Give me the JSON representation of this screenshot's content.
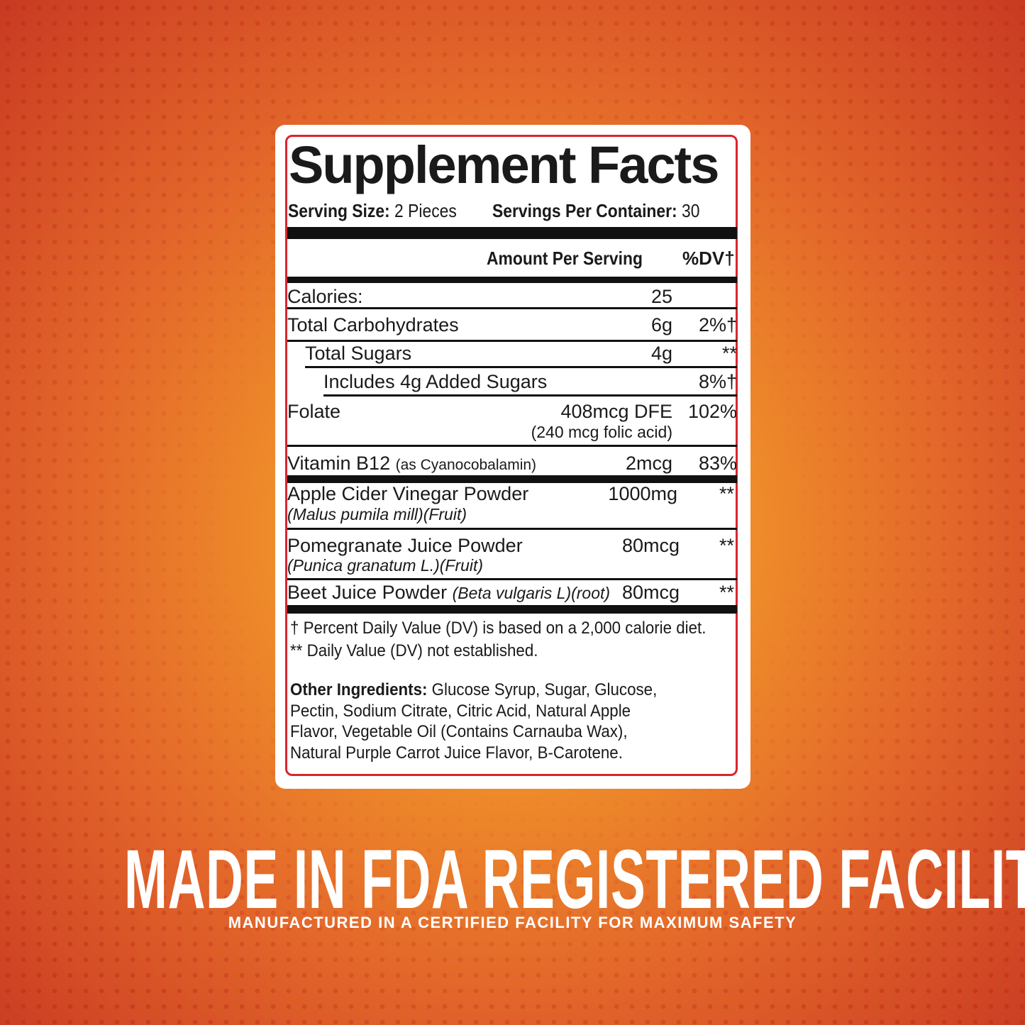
{
  "label": {
    "title": "Supplement Facts",
    "serving_size_label": "Serving Size:",
    "serving_size": "2 Pieces",
    "servings_label": "Servings Per Container:",
    "servings": "30",
    "amount_header": "Amount Per Serving",
    "dv_header": "%DV†",
    "rows": [
      {
        "name": "Calories:",
        "amount": "25",
        "dv": ""
      },
      {
        "name": "Total Carbohydrates",
        "amount": "6g",
        "dv": "2%†"
      },
      {
        "name": "Total Sugars",
        "amount": "4g",
        "dv": "**"
      },
      {
        "name": "Includes 4g Added Sugars",
        "amount": "",
        "dv": "8%†"
      },
      {
        "name": "Folate",
        "amount": "408mcg DFE",
        "amount_note": "(240 mcg folic acid)",
        "dv": "102%"
      },
      {
        "name": "Vitamin B12",
        "note": "(as Cyanocobalamin)",
        "amount": "2mcg",
        "dv": "83%"
      },
      {
        "name": "Apple Cider Vinegar Powder",
        "note": "(Malus pumila mill)(Fruit)",
        "amount": "1000mg",
        "dv": "**"
      },
      {
        "name": "Pomegranate Juice Powder",
        "note": "(Punica granatum L.)(Fruit)",
        "amount": "80mcg",
        "dv": "**"
      },
      {
        "name": "Beet Juice Powder",
        "note": "(Beta vulgaris L)(root)",
        "amount": "80mcg",
        "dv": "**"
      }
    ],
    "footnote_1": "† Percent Daily Value (DV) is based on a 2,000 calorie diet.",
    "footnote_2": "** Daily Value (DV) not established.",
    "other_label": "Other Ingredients:",
    "other_lines": [
      "Glucose Syrup, Sugar, Glucose,",
      "Pectin, Sodium Citrate, Citric Acid, Natural Apple",
      "Flavor, Vegetable Oil (Contains Carnauba Wax),",
      "Natural Purple Carrot Juice Flavor, B-Carotene."
    ]
  },
  "headline": "MADE IN FDA REGISTERED FACILITY",
  "subheadline": "MANUFACTURED IN A CERTIFIED FACILITY FOR MAXIMUM SAFETY",
  "colors": {
    "border": "#d8262e",
    "background_center": "#f5a326",
    "background_edge": "#c83a22"
  }
}
